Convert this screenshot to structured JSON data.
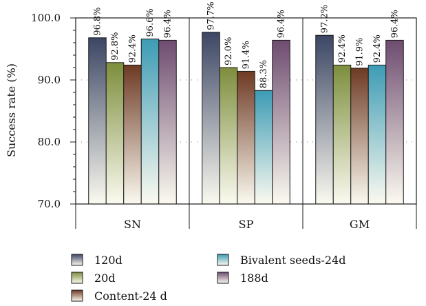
{
  "chart_data": {
    "type": "bar",
    "title": "",
    "xlabel": "",
    "ylabel": "Success rate (%)",
    "ylim": [
      70.0,
      100.0
    ],
    "yticks": [
      "70.0",
      "80.0",
      "90.0",
      "100.0"
    ],
    "categories": [
      "SN",
      "SP",
      "GM"
    ],
    "series": [
      {
        "name": "120d",
        "values": [
          96.8,
          97.7,
          97.2
        ],
        "labels": [
          "96.8%",
          "97.7%",
          "97.2%"
        ],
        "color": "#3c4664"
      },
      {
        "name": "20d",
        "values": [
          92.8,
          92.0,
          92.4
        ],
        "labels": [
          "92.8%",
          "92.0%",
          "92.4%"
        ],
        "color": "#7d8e3c"
      },
      {
        "name": "Content-24 d",
        "values": [
          92.4,
          91.4,
          91.9
        ],
        "labels": [
          "92.4%",
          "91.4%",
          "91.9%"
        ],
        "color": "#6e3a24"
      },
      {
        "name": "Bivalent seeds-24d",
        "values": [
          96.6,
          88.3,
          92.4
        ],
        "labels": [
          "96.6%",
          "88.3%",
          "92.4%"
        ],
        "color": "#3d9bb4"
      },
      {
        "name": "188d",
        "values": [
          96.4,
          96.4,
          96.4
        ],
        "labels": [
          "96.4%",
          "96.4%",
          "96.4%"
        ],
        "color": "#6e4c70"
      }
    ],
    "grid": "dotted-horizontal",
    "legend_position": "bottom"
  }
}
